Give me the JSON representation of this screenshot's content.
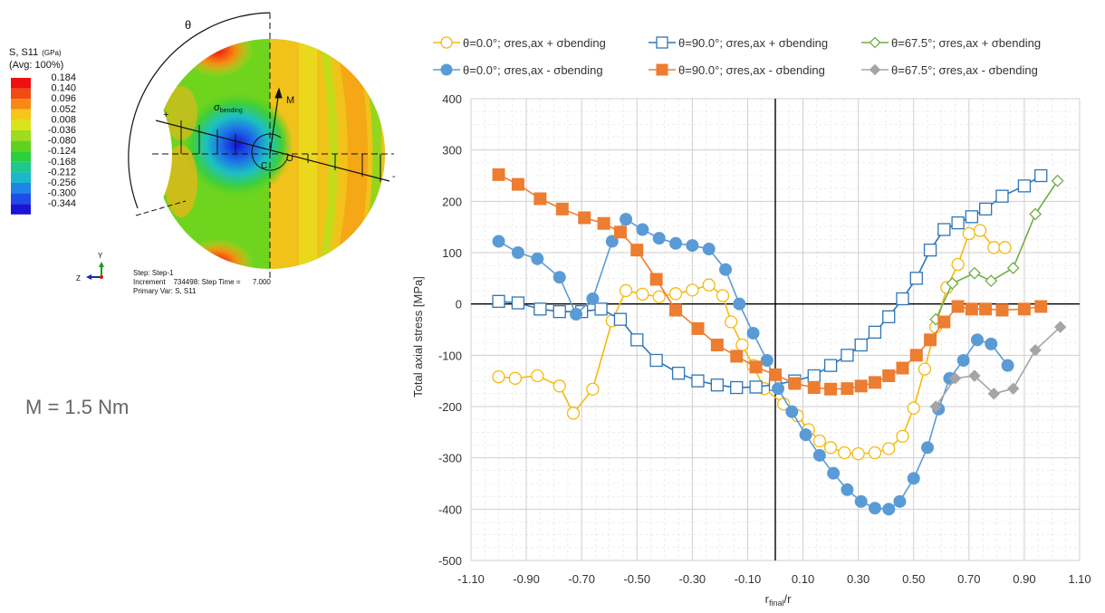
{
  "left_panel": {
    "legend_title": "S, S11",
    "legend_unit": "(GPa)",
    "legend_avg": "(Avg: 100%)",
    "legend_values": [
      "0.184",
      "0.140",
      "0.096",
      "0.052",
      "0.008",
      "-0.036",
      "-0.080",
      "-0.124",
      "-0.168",
      "-0.212",
      "-0.256",
      "-0.300",
      "-0.344"
    ],
    "legend_colors": [
      "#ee1010",
      "#f24a10",
      "#f78a12",
      "#f6c618",
      "#d9e51c",
      "#9fdc1c",
      "#5ed21e",
      "#2ccf3c",
      "#1fc98c",
      "#1ab9c9",
      "#1d84e8",
      "#1c4de8",
      "#1a14d6"
    ],
    "angle_label": "θ",
    "moment_arrow_label": "M",
    "sigma_label": "σ",
    "sigma_sub": "bending",
    "point_c": "C",
    "point_o": "O",
    "plus_sign": "+",
    "minus_sign": "-",
    "step_line1": "Step: Step-1",
    "step_line2": "Increment    734498: Step Time =      7.000",
    "step_line3": "Primary Var: S, S11",
    "triad_y": "Y",
    "triad_z": "Z",
    "moment_text": "M = 1.5 Nm"
  },
  "chart_data": {
    "type": "line",
    "xlabel_main": "r",
    "xlabel_sub": "final",
    "xlabel_tail": "/r",
    "ylabel": "Total axial stress [MPa]",
    "xlim": [
      -1.1,
      1.1
    ],
    "ylim": [
      -500,
      400
    ],
    "x_ticks": [
      "-1.10",
      "-0.90",
      "-0.70",
      "-0.50",
      "-0.30",
      "-0.10",
      "0.10",
      "0.30",
      "0.50",
      "0.70",
      "0.90",
      "1.10"
    ],
    "y_ticks": [
      "400",
      "300",
      "200",
      "100",
      "0",
      "-100",
      "-200",
      "-300",
      "-400",
      "-500"
    ],
    "grid": true,
    "legend_position": "top",
    "series": [
      {
        "name": "θ=0.0°; σres,ax + σbending",
        "color": "#f5b90f",
        "marker": "circle",
        "filled": false,
        "x": [
          -1.0,
          -0.94,
          -0.86,
          -0.78,
          -0.73,
          -0.66,
          -0.59,
          -0.54,
          -0.48,
          -0.42,
          -0.36,
          -0.3,
          -0.24,
          -0.19,
          -0.16,
          -0.12,
          -0.08,
          -0.04,
          0.03,
          0.08,
          0.12,
          0.16,
          0.2,
          0.25,
          0.3,
          0.36,
          0.41,
          0.46,
          0.5,
          0.54,
          0.58,
          0.62,
          0.66,
          0.7,
          0.74,
          0.79,
          0.83
        ],
        "y": [
          -142,
          -145,
          -140,
          -160,
          -213,
          -166,
          -33,
          26,
          19,
          14,
          20,
          27,
          37,
          16,
          -35,
          -80,
          -120,
          -165,
          -195,
          -218,
          -245,
          -267,
          -280,
          -290,
          -292,
          -290,
          -282,
          -258,
          -203,
          -127,
          -45,
          32,
          77,
          137,
          143,
          110,
          110
        ]
      },
      {
        "name": "θ=90.0°; σres,ax + σbending",
        "color": "#2e75b6",
        "marker": "square",
        "filled": false,
        "x": [
          -1.0,
          -0.93,
          -0.85,
          -0.78,
          -0.7,
          -0.63,
          -0.56,
          -0.5,
          -0.43,
          -0.35,
          -0.28,
          -0.21,
          -0.14,
          -0.07,
          0.0,
          0.07,
          0.14,
          0.2,
          0.26,
          0.31,
          0.36,
          0.41,
          0.46,
          0.51,
          0.56,
          0.61,
          0.66,
          0.71,
          0.76,
          0.82,
          0.9,
          0.96
        ],
        "y": [
          5,
          2,
          -10,
          -15,
          -15,
          -10,
          -30,
          -70,
          -110,
          -135,
          -150,
          -158,
          -163,
          -162,
          -157,
          -150,
          -140,
          -120,
          -100,
          -80,
          -55,
          -25,
          10,
          50,
          105,
          145,
          158,
          170,
          185,
          210,
          230,
          250
        ]
      },
      {
        "name": "θ=67.5°; σres,ax + σbending",
        "color": "#70ad47",
        "marker": "diamond",
        "filled": false,
        "x": [
          0.58,
          0.64,
          0.72,
          0.78,
          0.86,
          0.94,
          1.02
        ],
        "y": [
          -30,
          40,
          60,
          45,
          70,
          175,
          240
        ]
      },
      {
        "name": "θ=0.0°; σres,ax - σbending",
        "color": "#5b9bd5",
        "marker": "circle",
        "filled": true,
        "x": [
          -1.0,
          -0.93,
          -0.86,
          -0.78,
          -0.72,
          -0.66,
          -0.59,
          -0.54,
          -0.48,
          -0.42,
          -0.36,
          -0.3,
          -0.24,
          -0.18,
          -0.13,
          -0.08,
          -0.03,
          0.01,
          0.06,
          0.11,
          0.16,
          0.21,
          0.26,
          0.31,
          0.36,
          0.41,
          0.45,
          0.5,
          0.55,
          0.59,
          0.63,
          0.68,
          0.73,
          0.78,
          0.84
        ],
        "y": [
          122,
          100,
          88,
          52,
          -20,
          10,
          122,
          165,
          145,
          128,
          118,
          114,
          107,
          67,
          0,
          -57,
          -110,
          -165,
          -210,
          -255,
          -295,
          -330,
          -362,
          -385,
          -398,
          -400,
          -385,
          -340,
          -280,
          -205,
          -145,
          -110,
          -70,
          -78,
          -120
        ]
      },
      {
        "name": "θ=90.0°; σres,ax - σbending",
        "color": "#ed7d31",
        "marker": "square",
        "filled": true,
        "x": [
          -1.0,
          -0.93,
          -0.85,
          -0.77,
          -0.69,
          -0.62,
          -0.56,
          -0.5,
          -0.43,
          -0.36,
          -0.28,
          -0.21,
          -0.14,
          -0.07,
          0.0,
          0.07,
          0.14,
          0.2,
          0.26,
          0.31,
          0.36,
          0.41,
          0.46,
          0.51,
          0.56,
          0.61,
          0.66,
          0.71,
          0.76,
          0.82,
          0.9,
          0.96
        ],
        "y": [
          252,
          233,
          205,
          185,
          168,
          157,
          140,
          105,
          48,
          -12,
          -48,
          -80,
          -102,
          -123,
          -138,
          -155,
          -163,
          -166,
          -165,
          -160,
          -153,
          -140,
          -125,
          -100,
          -70,
          -35,
          -5,
          -10,
          -10,
          -12,
          -10,
          -5
        ]
      },
      {
        "name": "θ=67.5°; σres,ax - σbending",
        "color": "#a5a5a5",
        "marker": "diamond",
        "filled": true,
        "x": [
          0.58,
          0.65,
          0.72,
          0.79,
          0.86,
          0.94,
          1.03
        ],
        "y": [
          -200,
          -145,
          -140,
          -175,
          -165,
          -90,
          -45
        ]
      }
    ]
  }
}
